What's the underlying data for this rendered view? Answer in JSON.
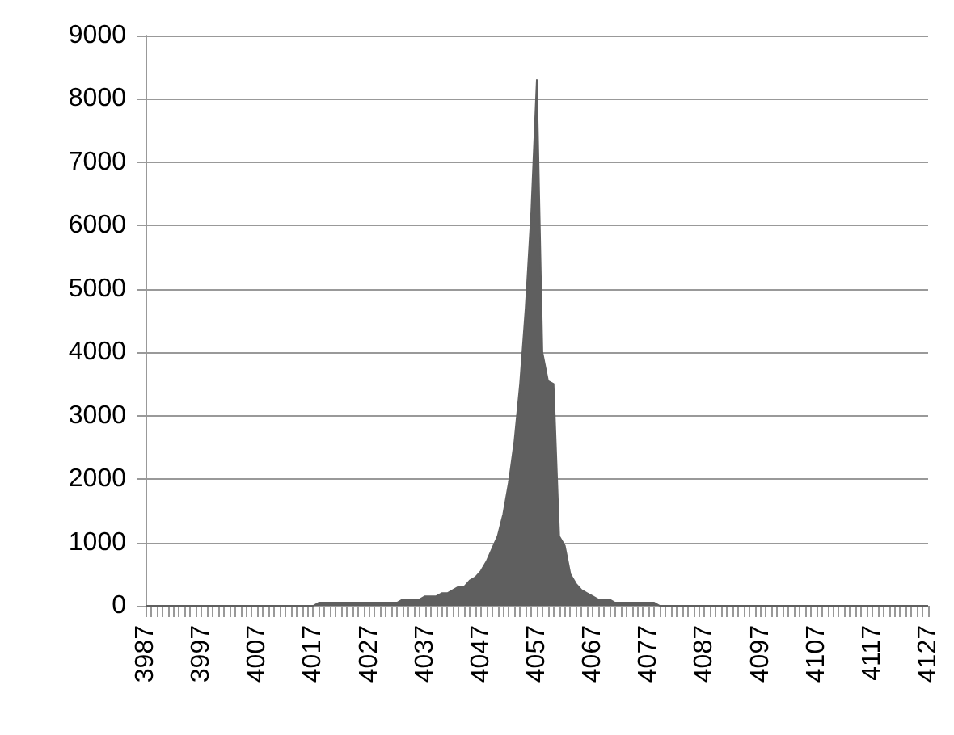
{
  "chart_data": {
    "type": "area",
    "categories": [
      "3987",
      null,
      null,
      null,
      null,
      null,
      null,
      null,
      null,
      null,
      "3997",
      null,
      null,
      null,
      null,
      null,
      null,
      null,
      null,
      null,
      "4007",
      null,
      null,
      null,
      null,
      null,
      null,
      null,
      null,
      null,
      "4017",
      null,
      null,
      null,
      null,
      null,
      null,
      null,
      null,
      null,
      "4027",
      null,
      null,
      null,
      null,
      null,
      null,
      null,
      null,
      null,
      "4037",
      null,
      null,
      null,
      null,
      null,
      null,
      null,
      null,
      null,
      "4047",
      null,
      null,
      null,
      null,
      null,
      null,
      null,
      null,
      null,
      "4057",
      null,
      null,
      null,
      null,
      null,
      null,
      null,
      null,
      null,
      "4067",
      null,
      null,
      null,
      null,
      null,
      null,
      null,
      null,
      null,
      "4077",
      null,
      null,
      null,
      null,
      null,
      null,
      null,
      null,
      null,
      "4087",
      null,
      null,
      null,
      null,
      null,
      null,
      null,
      null,
      null,
      "4097",
      null,
      null,
      null,
      null,
      null,
      null,
      null,
      null,
      null,
      "4107",
      null,
      null,
      null,
      null,
      null,
      null,
      null,
      null,
      null,
      "4117",
      null,
      null,
      null,
      null,
      null,
      null,
      null,
      null,
      null,
      "4127"
    ],
    "series": [
      {
        "color": "#5f5f5f",
        "values": [
          0,
          0,
          0,
          0,
          0,
          0,
          0,
          0,
          0,
          0,
          0,
          0,
          0,
          0,
          0,
          0,
          0,
          0,
          0,
          0,
          0,
          0,
          0,
          0,
          0,
          0,
          0,
          0,
          0,
          0,
          0,
          50,
          50,
          50,
          50,
          50,
          50,
          50,
          50,
          50,
          50,
          50,
          50,
          50,
          50,
          50,
          100,
          100,
          100,
          100,
          150,
          150,
          150,
          200,
          200,
          250,
          300,
          300,
          400,
          450,
          550,
          700,
          900,
          1100,
          1450,
          1950,
          2600,
          3500,
          4700,
          6200,
          8300,
          4000,
          3550,
          3500,
          1100,
          950,
          500,
          350,
          250,
          200,
          150,
          100,
          100,
          100,
          50,
          50,
          50,
          50,
          50,
          50,
          50,
          50,
          0,
          0,
          0,
          0,
          0,
          0,
          0,
          0,
          0,
          0,
          0,
          0,
          0,
          0,
          0,
          0,
          0,
          0,
          0,
          0,
          0,
          0,
          0,
          0,
          0,
          0,
          0,
          0,
          0,
          0,
          0,
          0,
          0,
          0,
          0,
          0,
          0,
          0,
          0,
          0,
          0,
          0,
          0,
          0,
          0,
          0,
          0,
          0,
          0
        ]
      }
    ],
    "ylim": [
      0,
      9000
    ],
    "yticks": [
      0,
      1000,
      2000,
      3000,
      4000,
      5000,
      6000,
      7000,
      8000,
      9000
    ],
    "grid": "y"
  }
}
